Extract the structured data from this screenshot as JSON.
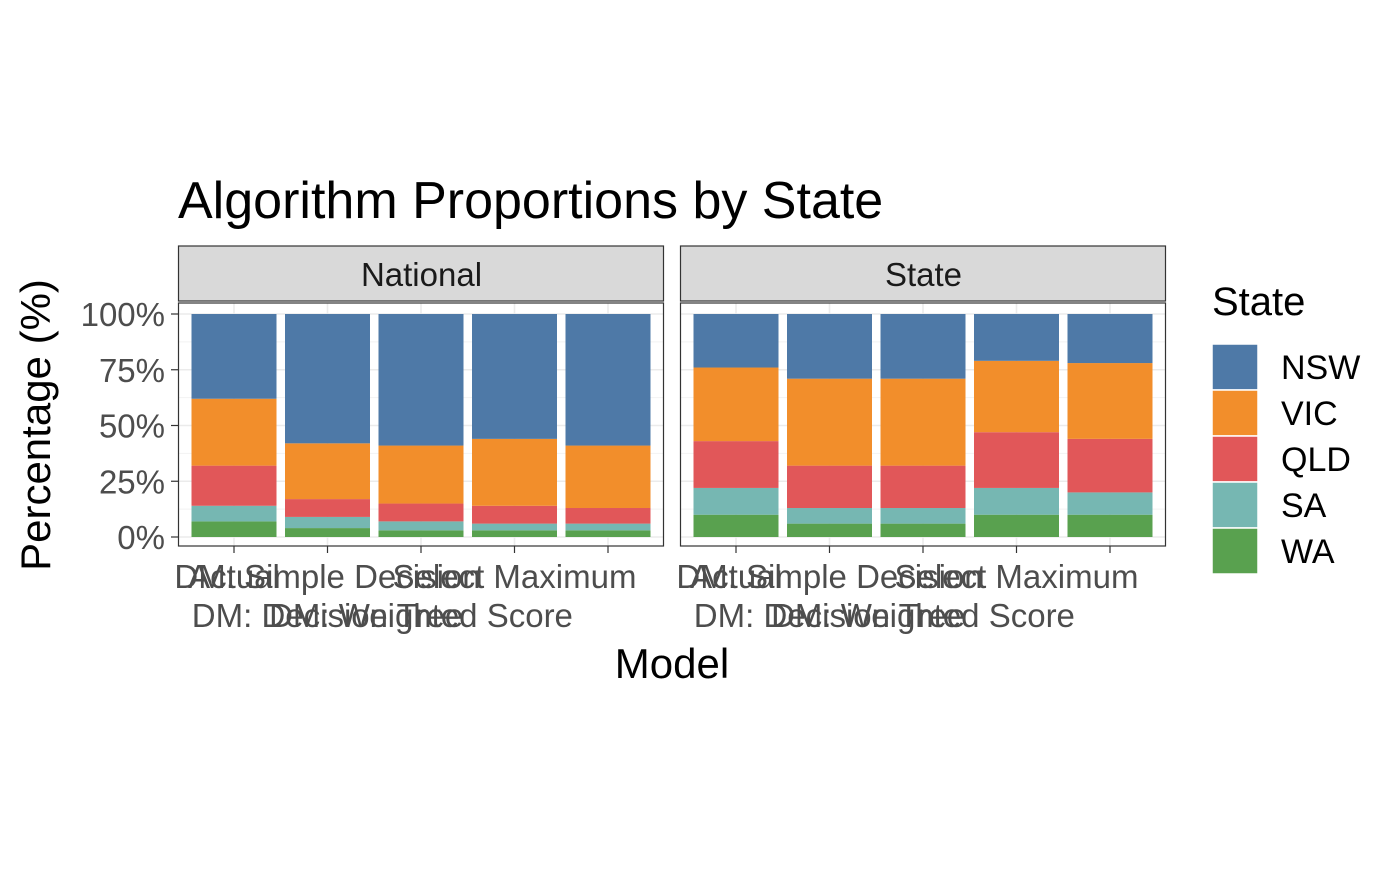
{
  "chart_data": {
    "type": "bar",
    "stacked": true,
    "title": "Algorithm Proportions by State",
    "xlabel": "Model",
    "ylabel": "Percentage (%)",
    "ylim": [
      0,
      1
    ],
    "y_ticks": [
      0,
      0.25,
      0.5,
      0.75,
      1.0
    ],
    "y_tick_labels": [
      "0%",
      "25%",
      "50%",
      "75%",
      "100%"
    ],
    "grid": true,
    "legend": {
      "title": "State",
      "position": "right",
      "entries": [
        "NSW",
        "VIC",
        "QLD",
        "SA",
        "WA"
      ]
    },
    "categories": [
      "Actual",
      "DM: Decision Tree",
      "DM: Simple Decision",
      "DM: Weighted Score",
      "Select Maximum"
    ],
    "category_label_lines": [
      [
        "Actual",
        ""
      ],
      [
        "DM: Simple Decision",
        "DM: Decision Tree"
      ],
      [
        "",
        "DM: Weighted Score"
      ],
      [
        "Select Maximum",
        ""
      ],
      [
        "",
        ""
      ]
    ],
    "facets": [
      {
        "name": "National",
        "series": [
          {
            "name": "NSW",
            "values": [
              0.38,
              0.58,
              0.59,
              0.56,
              0.59
            ]
          },
          {
            "name": "VIC",
            "values": [
              0.3,
              0.25,
              0.26,
              0.3,
              0.28
            ]
          },
          {
            "name": "QLD",
            "values": [
              0.18,
              0.08,
              0.08,
              0.08,
              0.07
            ]
          },
          {
            "name": "SA",
            "values": [
              0.07,
              0.05,
              0.04,
              0.03,
              0.03
            ]
          },
          {
            "name": "WA",
            "values": [
              0.07,
              0.04,
              0.03,
              0.03,
              0.03
            ]
          }
        ]
      },
      {
        "name": "State",
        "series": [
          {
            "name": "NSW",
            "values": [
              0.24,
              0.29,
              0.29,
              0.21,
              0.22
            ]
          },
          {
            "name": "VIC",
            "values": [
              0.33,
              0.39,
              0.39,
              0.32,
              0.34
            ]
          },
          {
            "name": "QLD",
            "values": [
              0.21,
              0.19,
              0.19,
              0.25,
              0.24
            ]
          },
          {
            "name": "SA",
            "values": [
              0.12,
              0.07,
              0.07,
              0.12,
              0.1
            ]
          },
          {
            "name": "WA",
            "values": [
              0.1,
              0.06,
              0.06,
              0.1,
              0.1
            ]
          }
        ]
      }
    ],
    "colors": {
      "NSW": "#4e79a7",
      "VIC": "#f28e2b",
      "QLD": "#e15759",
      "SA": "#76b7b2",
      "WA": "#59a14f"
    }
  }
}
